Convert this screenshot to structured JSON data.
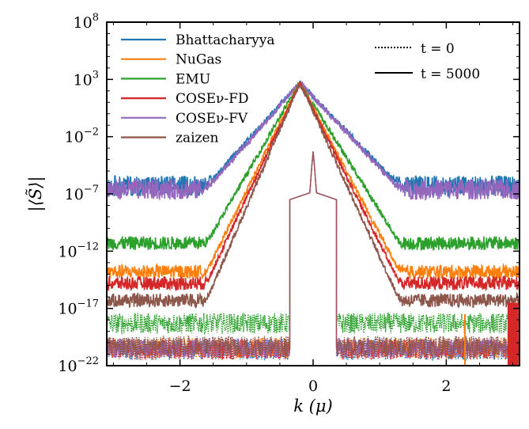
{
  "chart_data": {
    "type": "line",
    "xlabel": "k (μ)",
    "ylabel": "|⟨S̃⟩|",
    "xlim": [
      -3.1,
      3.1
    ],
    "ylim_log10": [
      -22,
      8
    ],
    "yscale": "log",
    "x_ticks": [
      -2,
      0,
      2
    ],
    "y_ticks": [
      {
        "base": "10",
        "exp": "8",
        "log10": 8
      },
      {
        "base": "10",
        "exp": "3",
        "log10": 3
      },
      {
        "base": "10",
        "exp": "−2",
        "log10": -2
      },
      {
        "base": "10",
        "exp": "−7",
        "log10": -7
      },
      {
        "base": "10",
        "exp": "−12",
        "log10": -12
      },
      {
        "base": "10",
        "exp": "−17",
        "log10": -17
      },
      {
        "base": "10",
        "exp": "−22",
        "log10": -22
      }
    ],
    "legend_location": "top",
    "series": [
      {
        "name": "Bhattacharyya",
        "color": "#1f77b4"
      },
      {
        "name": "NuGas",
        "color": "#ff7f0e"
      },
      {
        "name": "EMU",
        "color": "#2ca02c"
      },
      {
        "name": "COSEν-FD",
        "color": "#d62728"
      },
      {
        "name": "COSEν-FV",
        "color": "#9467bd"
      },
      {
        "name": "zaizen",
        "color": "#8c564b"
      }
    ],
    "style_legend": [
      {
        "label": "t = 0",
        "style": "dotted"
      },
      {
        "label": "t = 5000",
        "style": "solid"
      }
    ],
    "curves_log10": {
      "t5000": {
        "peak": {
          "x": -0.2,
          "y": 2.7
        },
        "floors": {
          "Bhattacharyya": -6.3,
          "NuGas": -13.8,
          "EMU": -11.3,
          "COSEν-FD": -14.8,
          "COSEν-FV": -6.6,
          "zaizen": -16.3
        },
        "triangle_base_x": {
          "left": -1.6,
          "right": 1.3
        }
      },
      "t0": {
        "center_peak": {
          "x": 0.0,
          "y": -3.3
        },
        "cutoff_x": [
          -0.35,
          0.35
        ],
        "floors": {
          "EMU": -18.3,
          "others": -20.6
        }
      }
    }
  }
}
